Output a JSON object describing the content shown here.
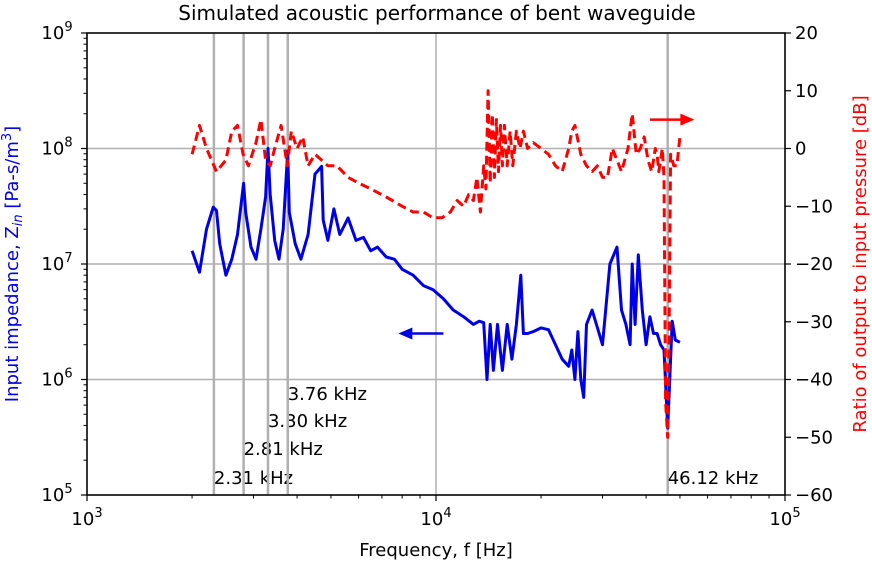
{
  "chart_data": {
    "type": "line",
    "title": "Simulated acoustic performance of bent waveguide",
    "xlabel": "Frequency, f [Hz]",
    "ylabel_left": "Input impedance, Z_in [Pa-s/m³]",
    "ylabel_left_parts": {
      "pre": "Input impedance, Z",
      "sub": "in",
      "mid": " [Pa-s/m",
      "sup": "3",
      "post": "]"
    },
    "ylabel_right": "Ratio of output to input pressure [dB]",
    "x_scale": "log",
    "xlim": [
      1000,
      100000
    ],
    "x_ticks": [
      {
        "value": 1000,
        "base": "10",
        "exp": "3"
      },
      {
        "value": 10000,
        "base": "10",
        "exp": "4"
      },
      {
        "value": 100000,
        "base": "10",
        "exp": "5"
      }
    ],
    "y_left_scale": "log",
    "y_left_lim": [
      100000,
      1000000000
    ],
    "y_left_ticks": [
      {
        "value": 100000,
        "base": "10",
        "exp": "5"
      },
      {
        "value": 1000000,
        "base": "10",
        "exp": "6"
      },
      {
        "value": 10000000,
        "base": "10",
        "exp": "7"
      },
      {
        "value": 100000000,
        "base": "10",
        "exp": "8"
      },
      {
        "value": 1000000000,
        "base": "10",
        "exp": "9"
      }
    ],
    "y_right_lim": [
      -60,
      20
    ],
    "y_right_ticks": [
      "−60",
      "−50",
      "−40",
      "−30",
      "−20",
      "−10",
      "0",
      "10",
      "20"
    ],
    "grid": true,
    "colors": {
      "impedance": "#0000e6",
      "pressure": "#ff0000",
      "grid": "#b0b0b0",
      "marker_lines": "#b0b0b0"
    },
    "marker_lines": [
      {
        "freq": 2310,
        "label": "2.31 kHz"
      },
      {
        "freq": 2810,
        "label": "2.81 kHz"
      },
      {
        "freq": 3300,
        "label": "3.30 kHz"
      },
      {
        "freq": 3760,
        "label": "3.76 kHz"
      },
      {
        "freq": 46120,
        "label": "46.12 kHz"
      }
    ],
    "series": [
      {
        "axis": "left",
        "style": "solid",
        "color": "#0000e6",
        "x": [
          2000,
          2100,
          2200,
          2300,
          2350,
          2400,
          2500,
          2600,
          2700,
          2810,
          2850,
          2950,
          3050,
          3150,
          3250,
          3300,
          3350,
          3450,
          3550,
          3650,
          3760,
          3800,
          3950,
          4100,
          4300,
          4500,
          4700,
          4750,
          4900,
          5100,
          5300,
          5600,
          5900,
          6200,
          6500,
          6800,
          7200,
          7600,
          8000,
          8600,
          9200,
          9800,
          10500,
          11200,
          12000,
          12800,
          13300,
          13700,
          14000,
          14300,
          14600,
          15000,
          15500,
          16000,
          16500,
          17000,
          17500,
          17800,
          18300,
          19000,
          20000,
          21000,
          22000,
          23000,
          24000,
          24500,
          25000,
          25500,
          26000,
          26500,
          27000,
          28000,
          30000,
          31500,
          33000,
          34000,
          35000,
          36000,
          36500,
          37200,
          38000,
          39000,
          40000,
          41000,
          42000,
          43000,
          44000,
          45000,
          46120,
          47500,
          48500,
          50000
        ],
        "y": [
          13000000,
          8500000,
          20000000,
          31000000,
          29000000,
          15000000,
          8000000,
          11000000,
          18000000,
          50000000,
          28000000,
          14000000,
          11000000,
          20000000,
          38000000,
          100000000,
          40000000,
          16000000,
          11000000,
          20000000,
          95000000,
          28000000,
          15000000,
          11000000,
          18000000,
          60000000,
          70000000,
          24000000,
          16000000,
          30000000,
          18000000,
          25000000,
          16000000,
          17000000,
          13000000,
          14000000,
          11500000,
          11000000,
          9000000,
          8000000,
          6500000,
          6000000,
          5000000,
          4000000,
          3500000,
          3000000,
          3200000,
          3100000,
          1000000,
          3000000,
          1200000,
          3000000,
          1200000,
          3000000,
          1500000,
          3000000,
          8000000,
          2500000,
          2500000,
          2600000,
          2800000,
          2700000,
          2000000,
          1500000,
          1300000,
          1800000,
          1000000,
          2600000,
          1000000,
          700000,
          3000000,
          4000000,
          2000000,
          10000000,
          14000000,
          4000000,
          3000000,
          2000000,
          10000000,
          3000000,
          12000000,
          4000000,
          2000000,
          3500000,
          2500000,
          2500000,
          2000000,
          1800000,
          380000,
          3200000,
          2200000,
          2100000
        ]
      },
      {
        "axis": "right",
        "style": "dashed",
        "color": "#ff0000",
        "x": [
          2000,
          2100,
          2200,
          2350,
          2500,
          2600,
          2700,
          2800,
          2900,
          3050,
          3150,
          3250,
          3350,
          3450,
          3600,
          3750,
          3850,
          4000,
          4150,
          4300,
          4500,
          4700,
          4900,
          5200,
          5600,
          6000,
          6500,
          7000,
          7500,
          8000,
          8600,
          9200,
          9800,
          10400,
          11000,
          11500,
          12000,
          12400,
          12800,
          13100,
          13400,
          13700,
          13900,
          14100,
          14300,
          14500,
          14700,
          14900,
          15100,
          15300,
          15500,
          15700,
          16000,
          16300,
          16600,
          17000,
          17400,
          17800,
          18300,
          19000,
          20000,
          21000,
          22000,
          23000,
          24000,
          24500,
          25000,
          26000,
          27000,
          28000,
          29000,
          30000,
          31000,
          32000,
          33000,
          34000,
          35500,
          36500,
          37500,
          38500,
          39500,
          40500,
          41500,
          42500,
          43000,
          43500,
          44000,
          44500,
          45000,
          45500,
          46120,
          46500,
          47000,
          48000,
          49000,
          50000
        ],
        "y": [
          -1,
          4,
          0,
          -4,
          -2,
          3,
          4,
          -1,
          -3,
          1,
          5,
          -2,
          -3,
          0,
          4,
          -3,
          3,
          0,
          2,
          -3,
          -1,
          -2,
          -3,
          -3,
          -5,
          -6,
          -7,
          -8,
          -9,
          -10,
          -11,
          -11,
          -12,
          -12,
          -11,
          -9,
          -10,
          -8,
          -9,
          -5,
          -11,
          -3,
          -7,
          10,
          -6,
          6,
          -5,
          5,
          -4,
          4,
          -3,
          4,
          -3,
          3,
          -3,
          3,
          0,
          3,
          0,
          1,
          0,
          -1,
          -3,
          -4,
          0,
          3,
          4,
          -1,
          -3,
          -4,
          -3,
          -5,
          -5,
          0,
          -2,
          -4,
          0,
          6,
          -1,
          0,
          2,
          -2,
          -4,
          0,
          -1,
          -4,
          -2,
          0,
          -5,
          -44,
          -50,
          -35,
          -1,
          -3,
          -3,
          2
        ]
      }
    ],
    "arrows": [
      {
        "axis": "left",
        "direction": "left",
        "x_from": 10500,
        "x_to": 7800,
        "y": 2500000,
        "color": "#0000e6"
      },
      {
        "axis": "right",
        "direction": "right",
        "x_from": 41000,
        "x_to": 55000,
        "y": 5,
        "color": "#ff0000"
      }
    ]
  }
}
